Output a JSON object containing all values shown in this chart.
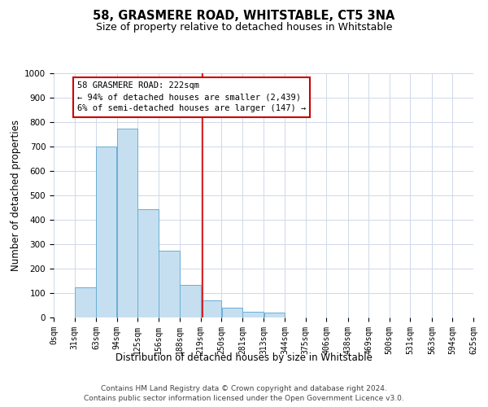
{
  "title": "58, GRASMERE ROAD, WHITSTABLE, CT5 3NA",
  "subtitle": "Size of property relative to detached houses in Whitstable",
  "xlabel": "Distribution of detached houses by size in Whitstable",
  "ylabel": "Number of detached properties",
  "bar_color": "#c5dff0",
  "bar_edge_color": "#6aaed6",
  "background_color": "#ffffff",
  "grid_color": "#d0d8e8",
  "annotation_box_text": "58 GRASMERE ROAD: 222sqm\n← 94% of detached houses are smaller (2,439)\n6% of semi-detached houses are larger (147) →",
  "annotation_box_color": "#cc0000",
  "vline_x": 222,
  "vline_color": "#cc0000",
  "ylim": [
    0,
    1000
  ],
  "yticks": [
    0,
    100,
    200,
    300,
    400,
    500,
    600,
    700,
    800,
    900,
    1000
  ],
  "bin_edges": [
    0,
    31,
    63,
    94,
    125,
    156,
    188,
    219,
    250,
    281,
    313,
    344,
    375,
    406,
    438,
    469,
    500,
    531,
    563,
    594,
    625
  ],
  "bar_heights": [
    0,
    125,
    700,
    775,
    445,
    275,
    135,
    70,
    40,
    25,
    20,
    0,
    0,
    0,
    0,
    0,
    0,
    0,
    0,
    0
  ],
  "tick_labels": [
    "0sqm",
    "31sqm",
    "63sqm",
    "94sqm",
    "125sqm",
    "156sqm",
    "188sqm",
    "219sqm",
    "250sqm",
    "281sqm",
    "313sqm",
    "344sqm",
    "375sqm",
    "406sqm",
    "438sqm",
    "469sqm",
    "500sqm",
    "531sqm",
    "563sqm",
    "594sqm",
    "625sqm"
  ],
  "footer_line1": "Contains HM Land Registry data © Crown copyright and database right 2024.",
  "footer_line2": "Contains public sector information licensed under the Open Government Licence v3.0.",
  "title_fontsize": 10.5,
  "subtitle_fontsize": 9,
  "axis_label_fontsize": 8.5,
  "tick_fontsize": 7,
  "annotation_fontsize": 7.5,
  "footer_fontsize": 6.5
}
